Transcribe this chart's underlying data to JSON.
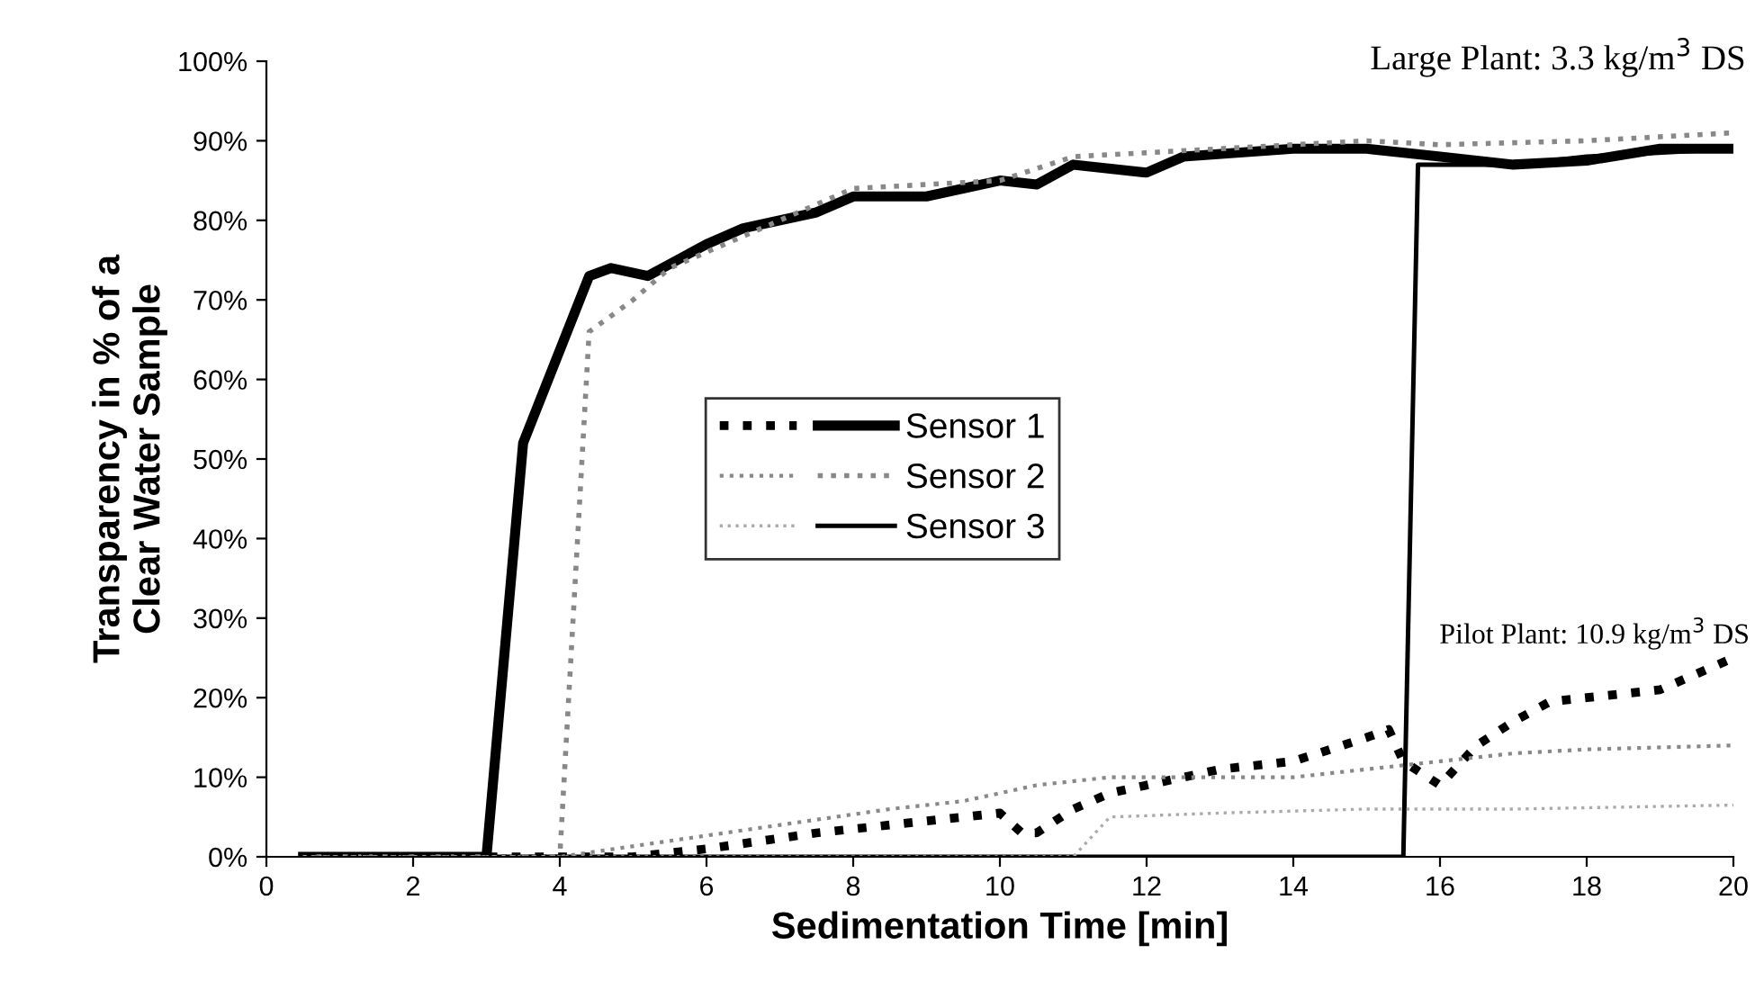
{
  "chart_data": {
    "type": "line",
    "xlabel": "Sedimentation Time [min]",
    "ylabel": "Transparency in % of a\nClear Water Sample",
    "xlim": [
      0,
      20
    ],
    "xticks": [
      0,
      2,
      4,
      6,
      8,
      10,
      12,
      14,
      16,
      18,
      20
    ],
    "ylim": [
      0,
      100
    ],
    "yticks": [
      {
        "value": 0,
        "label": "0%"
      },
      {
        "value": 10,
        "label": "10%"
      },
      {
        "value": 20,
        "label": "20%"
      },
      {
        "value": 30,
        "label": "30%"
      },
      {
        "value": 40,
        "label": "40%"
      },
      {
        "value": 50,
        "label": "50%"
      },
      {
        "value": 60,
        "label": "60%"
      },
      {
        "value": 70,
        "label": "70%"
      },
      {
        "value": 80,
        "label": "80%"
      },
      {
        "value": 90,
        "label": "90%"
      },
      {
        "value": 100,
        "label": "100%"
      }
    ],
    "grid": false,
    "legend": "center",
    "marker": "none",
    "annotations": [
      "Large Plant: 3.3 kg/m$^{3}$ DS",
      "Pilot Plant: 10.9 kg/m$^{3}$ DS"
    ],
    "series": [
      {
        "name": "Sensor 1",
        "color": "#000000",
        "line_style": "solid",
        "x": [
          0.5,
          3,
          3.5,
          4.4,
          4.7,
          5.2,
          6,
          6.5,
          7.5,
          8,
          9,
          10,
          10.5,
          11,
          12,
          12.5,
          14,
          15,
          16,
          17,
          18,
          19,
          20
        ],
        "values": [
          0,
          0,
          52,
          73,
          74,
          73,
          77,
          79,
          81,
          83,
          83,
          85,
          84.5,
          87,
          86,
          88,
          89,
          89,
          88,
          87,
          87.5,
          89,
          89
        ]
      },
      {
        "name": "Sensor 2",
        "color": "#888888",
        "line_style": "dotted",
        "x": [
          0.5,
          4,
          4.4,
          5,
          5.5,
          6.5,
          8,
          10,
          11,
          13,
          15,
          16,
          18,
          20
        ],
        "values": [
          0,
          0,
          66,
          70,
          74,
          78,
          84,
          85,
          88,
          89,
          90,
          89.5,
          90,
          91
        ]
      },
      {
        "name": "Sensor 3",
        "color": "#000000",
        "line_style": "solid",
        "x": [
          3,
          15.5,
          15.7,
          17,
          18,
          20
        ],
        "values": [
          0,
          0,
          87,
          87,
          88,
          89
        ]
      },
      {
        "color": "#000000",
        "line_style": "dotted",
        "x": [
          0.5,
          5,
          6,
          7.5,
          8.5,
          9.5,
          10,
          10.3,
          10.5,
          11,
          11.5,
          12.5,
          13,
          14,
          15,
          15.3,
          15.5,
          16,
          16.5,
          17,
          17.5,
          18,
          19,
          20
        ],
        "values": [
          0,
          0,
          1,
          3,
          4,
          5,
          5.5,
          3,
          3,
          6,
          8,
          10,
          11,
          12,
          15,
          16,
          12,
          9,
          14,
          17,
          19.5,
          20,
          21,
          25
        ]
      },
      {
        "color": "#888888",
        "line_style": "dotted",
        "x": [
          0.5,
          4,
          5.5,
          7,
          8.5,
          9.5,
          10.5,
          11.5,
          12.5,
          14,
          15,
          16,
          17,
          18,
          20
        ],
        "values": [
          0,
          0,
          2,
          4,
          6,
          7,
          9,
          10,
          10,
          10,
          11,
          12,
          13,
          13.5,
          14
        ]
      },
      {
        "color": "#aaaaaa",
        "line_style": "dotted",
        "x": [
          0.5,
          11,
          11.5,
          13,
          15,
          17,
          20
        ],
        "values": [
          0,
          0,
          5,
          5.5,
          6,
          6,
          6.5
        ]
      }
    ]
  }
}
